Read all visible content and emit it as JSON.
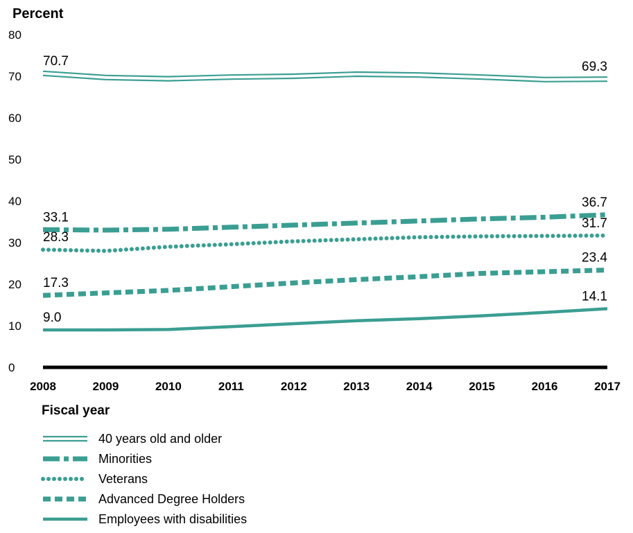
{
  "chart_data": {
    "type": "line",
    "ylabel": "Percent",
    "xlabel": "Fiscal year",
    "ylim": [
      0,
      80
    ],
    "yticks": [
      "0",
      "10",
      "20",
      "30",
      "40",
      "50",
      "60",
      "70",
      "80"
    ],
    "x": [
      "2008",
      "2009",
      "2010",
      "2011",
      "2012",
      "2013",
      "2014",
      "2015",
      "2016",
      "2017"
    ],
    "grid": false,
    "legend_position": "bottom",
    "accent_color": "#3a9e92",
    "series": [
      {
        "name": "40 years old and older",
        "style": "double",
        "values": [
          70.7,
          69.7,
          69.4,
          69.8,
          70.0,
          70.5,
          70.3,
          69.8,
          69.2,
          69.3
        ],
        "start_label": "70.7",
        "end_label": "69.3"
      },
      {
        "name": "Minorities",
        "style": "dashdot",
        "values": [
          33.1,
          33.0,
          33.2,
          33.7,
          34.2,
          34.7,
          35.2,
          35.7,
          36.1,
          36.7
        ],
        "start_label": "33.1",
        "end_label": "36.7"
      },
      {
        "name": "Veterans",
        "style": "dotted",
        "values": [
          28.3,
          28.0,
          29.0,
          29.6,
          30.3,
          30.8,
          31.3,
          31.5,
          31.6,
          31.7
        ],
        "start_label": "28.3",
        "end_label": "31.7"
      },
      {
        "name": "Advanced Degree Holders",
        "style": "dashed",
        "values": [
          17.3,
          17.9,
          18.5,
          19.4,
          20.3,
          21.1,
          21.8,
          22.6,
          23.0,
          23.4
        ],
        "start_label": "17.3",
        "end_label": "23.4"
      },
      {
        "name": "Employees with disabilities",
        "style": "solid",
        "values": [
          9.0,
          9.0,
          9.1,
          9.8,
          10.5,
          11.2,
          11.7,
          12.4,
          13.2,
          14.1
        ],
        "start_label": "9.0",
        "end_label": "14.1"
      }
    ]
  }
}
